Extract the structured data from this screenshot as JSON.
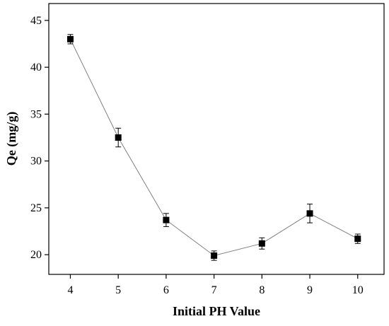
{
  "chart_data": {
    "type": "scatter",
    "title": "",
    "xlabel": "Initial PH Value",
    "ylabel": "Qe (mg/g)",
    "x": [
      4,
      5,
      6,
      7,
      8,
      9,
      10
    ],
    "series": [
      {
        "values": [
          43.0,
          32.5,
          23.7,
          19.9,
          21.2,
          24.4,
          21.7
        ],
        "errors": [
          0.5,
          1.0,
          0.7,
          0.5,
          0.6,
          1.0,
          0.5
        ],
        "marker": "square",
        "color": "#000000",
        "line_color": "#808080"
      }
    ],
    "xlim": [
      3.55,
      10.55
    ],
    "ylim": [
      17.9,
      46.8
    ],
    "xticks": [
      4,
      5,
      6,
      7,
      8,
      9,
      10
    ],
    "xtick_labels": [
      "4",
      "5",
      "6",
      "7",
      "8",
      "9",
      "10"
    ],
    "yticks": [
      20,
      25,
      30,
      35,
      40,
      45
    ],
    "ytick_labels": [
      "20",
      "25",
      "30",
      "35",
      "40",
      "45"
    ],
    "grid": false,
    "legend": "none"
  }
}
